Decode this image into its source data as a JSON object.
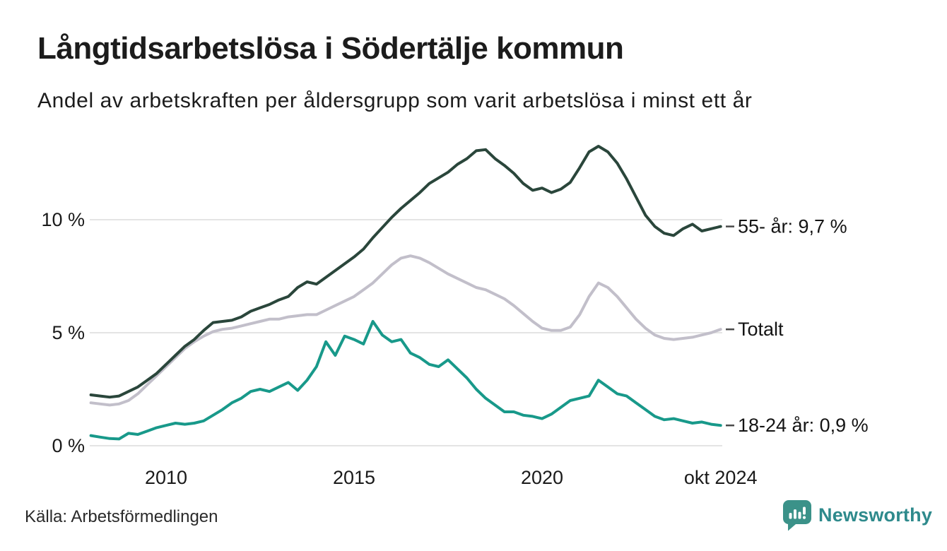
{
  "header": {
    "title": "Långtidsarbetslösa i Södertälje kommun",
    "subtitle": "Andel av arbetskraften per åldersgrupp som varit arbetslösa i minst ett år"
  },
  "footer": {
    "source": "Källa: Arbetsförmedlingen",
    "brand": "Newsworthy",
    "brand_color": "#2e8a8c",
    "brand_icon": "speech-bubble-bar-chart",
    "brand_icon_color": "#3b9289"
  },
  "chart_data": {
    "type": "line",
    "title": "Långtidsarbetslösa i Södertälje kommun",
    "subtitle": "Andel av arbetskraften per åldersgrupp som varit arbetslösa i minst ett år",
    "xlabel": "",
    "ylabel": "",
    "grid": true,
    "grid_color": "#e4e4e4",
    "ylim": [
      0,
      14.2
    ],
    "x_start": 2008,
    "x_step": 0.25,
    "x_ticks": [
      {
        "label": "2010",
        "year": 2010
      },
      {
        "label": "2015",
        "year": 2015
      },
      {
        "label": "2020",
        "year": 2020
      },
      {
        "label": "okt 2024",
        "year": 2024.75
      }
    ],
    "y_ticks": [
      {
        "label": "0 %",
        "value": 0
      },
      {
        "label": "5 %",
        "value": 5
      },
      {
        "label": "10 %",
        "value": 10
      }
    ],
    "legend_position": "right-end-labels",
    "series": [
      {
        "name": "55- år",
        "end_label": "55- år: 9,7 %",
        "end_value": "9,7 %",
        "color": "#2a463b",
        "values": [
          2.25,
          2.2,
          2.15,
          2.2,
          2.4,
          2.6,
          2.9,
          3.2,
          3.6,
          4.0,
          4.4,
          4.7,
          5.1,
          5.45,
          5.5,
          5.55,
          5.7,
          5.95,
          6.1,
          6.25,
          6.45,
          6.6,
          7.0,
          7.25,
          7.15,
          7.45,
          7.75,
          8.05,
          8.35,
          8.7,
          9.2,
          9.65,
          10.1,
          10.5,
          10.85,
          11.2,
          11.6,
          11.85,
          12.1,
          12.45,
          12.7,
          13.05,
          13.1,
          12.7,
          12.4,
          12.05,
          11.6,
          11.3,
          11.4,
          11.2,
          11.35,
          11.65,
          12.3,
          13.0,
          13.25,
          13.0,
          12.5,
          11.8,
          11.0,
          10.2,
          9.7,
          9.4,
          9.3,
          9.6,
          9.8,
          9.5,
          9.6,
          9.7
        ]
      },
      {
        "name": "Totalt",
        "end_label": "Totalt",
        "end_value": "5,1 %",
        "color": "#c2bfca",
        "values": [
          1.9,
          1.85,
          1.8,
          1.85,
          2.0,
          2.3,
          2.7,
          3.1,
          3.5,
          3.9,
          4.3,
          4.6,
          4.85,
          5.05,
          5.15,
          5.2,
          5.3,
          5.4,
          5.5,
          5.6,
          5.6,
          5.7,
          5.75,
          5.8,
          5.8,
          6.0,
          6.2,
          6.4,
          6.6,
          6.9,
          7.2,
          7.6,
          8.0,
          8.3,
          8.4,
          8.3,
          8.1,
          7.85,
          7.6,
          7.4,
          7.2,
          7.0,
          6.9,
          6.7,
          6.5,
          6.2,
          5.85,
          5.5,
          5.2,
          5.1,
          5.1,
          5.25,
          5.8,
          6.6,
          7.2,
          7.0,
          6.6,
          6.1,
          5.6,
          5.2,
          4.9,
          4.75,
          4.7,
          4.75,
          4.8,
          4.9,
          5.0,
          5.15
        ]
      },
      {
        "name": "18-24 år",
        "end_label": "18-24 år: 0,9 %",
        "end_value": "0,9 %",
        "color": "#18998a",
        "values": [
          0.45,
          0.38,
          0.32,
          0.3,
          0.55,
          0.5,
          0.65,
          0.8,
          0.9,
          1.0,
          0.95,
          1.0,
          1.1,
          1.35,
          1.6,
          1.9,
          2.1,
          2.4,
          2.5,
          2.4,
          2.6,
          2.8,
          2.45,
          2.9,
          3.5,
          4.6,
          4.0,
          4.85,
          4.7,
          4.5,
          5.5,
          4.9,
          4.6,
          4.7,
          4.1,
          3.9,
          3.6,
          3.5,
          3.8,
          3.4,
          3.0,
          2.5,
          2.1,
          1.8,
          1.5,
          1.5,
          1.35,
          1.3,
          1.2,
          1.4,
          1.7,
          2.0,
          2.1,
          2.2,
          2.9,
          2.6,
          2.3,
          2.2,
          1.9,
          1.6,
          1.3,
          1.15,
          1.2,
          1.1,
          1.0,
          1.05,
          0.95,
          0.9
        ]
      }
    ]
  }
}
